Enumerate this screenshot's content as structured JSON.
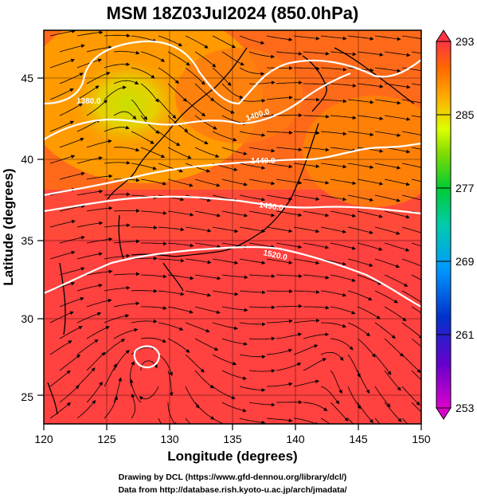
{
  "title": "MSM 18Z03Jul2024 (850.0hPa)",
  "xaxis": {
    "label": "Longitude (degrees)",
    "range": [
      120,
      150
    ],
    "ticks": [
      "120",
      "125",
      "130",
      "135",
      "140",
      "145",
      "150"
    ]
  },
  "yaxis": {
    "label": "Latitude  (degrees)",
    "range": [
      22.4,
      47.6
    ],
    "ticks": [
      "25",
      "30",
      "35",
      "40",
      "45"
    ]
  },
  "colorbar": {
    "range": [
      253,
      293
    ],
    "ticks": [
      "293",
      "285",
      "277",
      "269",
      "261",
      "253"
    ],
    "colors": [
      "#cc00cc",
      "#3300cc",
      "#0066ff",
      "#00ccff",
      "#00cc66",
      "#66cc00",
      "#ccff00",
      "#ffcc00",
      "#ff9900",
      "#ff5500",
      "#ff3333"
    ]
  },
  "contours": {
    "color": "#ffffff",
    "labels": [
      "1380.0",
      "1400.0",
      "1440.0",
      "1490.0",
      "1520.0"
    ]
  },
  "credits": {
    "line1": "Drawing by DCL (https://www.gfd-dennou.org/library/dcl/)",
    "line2": "Data from http://database.rish.kyoto-u.ac.jp/arch/jmadata/"
  }
}
